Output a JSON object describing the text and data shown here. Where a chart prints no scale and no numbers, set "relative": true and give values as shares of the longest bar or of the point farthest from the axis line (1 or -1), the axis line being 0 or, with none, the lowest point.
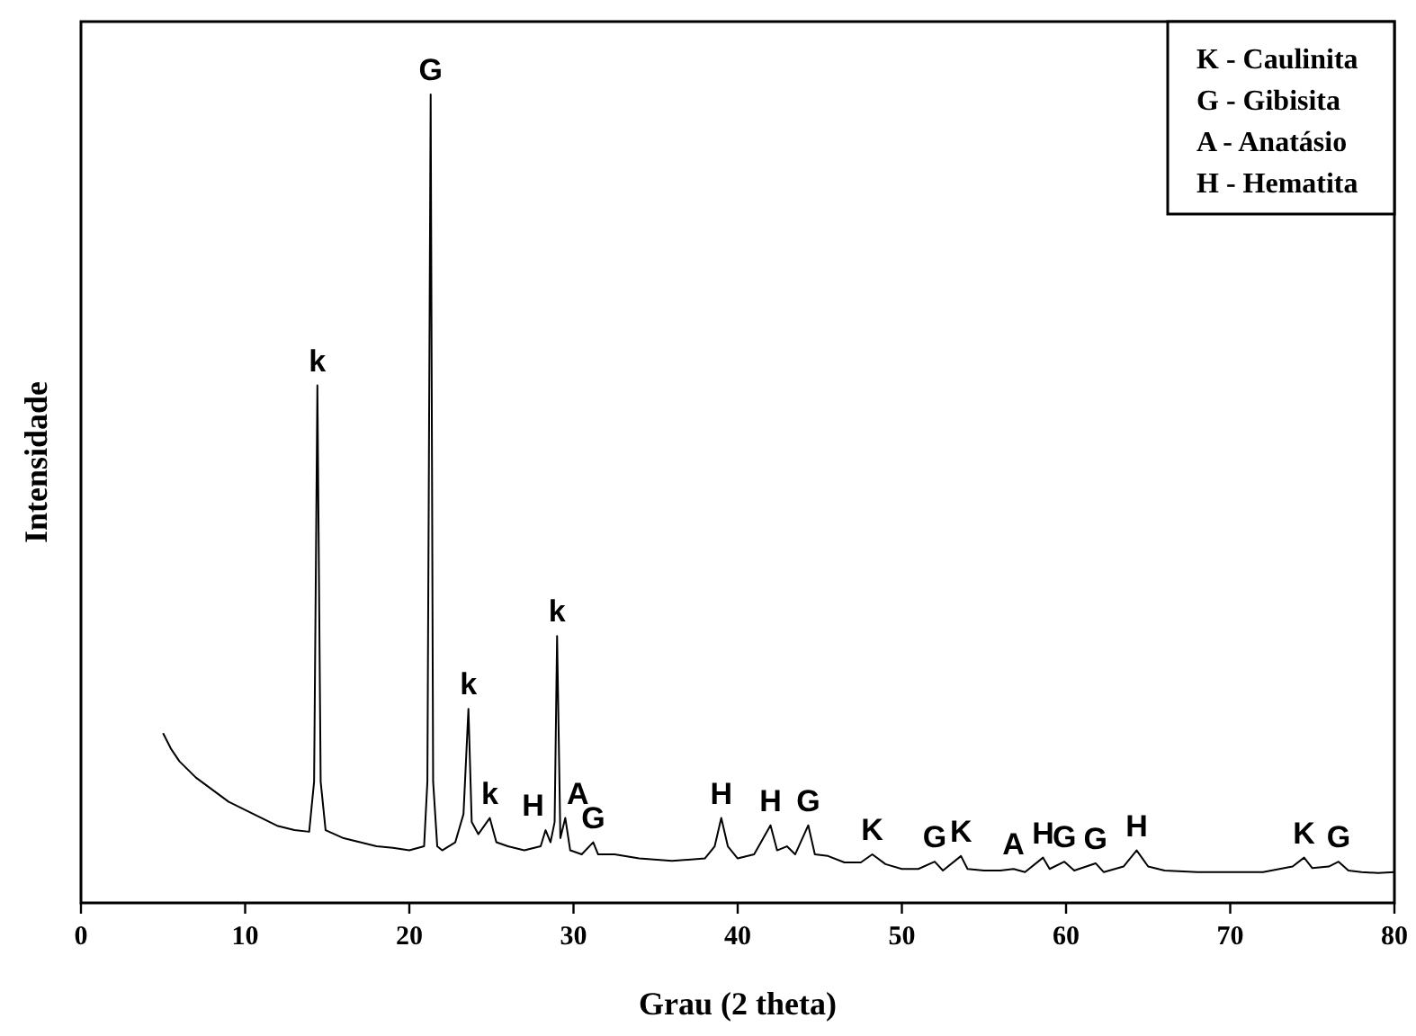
{
  "chart_data": {
    "type": "line",
    "relative": true,
    "xlabel": "Grau (2 theta)",
    "ylabel": "Intensidade",
    "xlim": [
      0,
      80
    ],
    "xticks": [
      0,
      10,
      20,
      30,
      40,
      50,
      60,
      70,
      80
    ],
    "grid": false,
    "marker": "none",
    "line_style": "solid",
    "series": [
      {
        "color": "#000000",
        "x": [
          5,
          5.5,
          6,
          7,
          8,
          9,
          10,
          11,
          12,
          13,
          13.9,
          14.2,
          14.4,
          14.6,
          14.9,
          16,
          17,
          18,
          19,
          20,
          20.9,
          21.1,
          21.3,
          21.45,
          21.7,
          22,
          22.8,
          23.3,
          23.6,
          23.8,
          24.2,
          24.9,
          25.3,
          26,
          27,
          28,
          28.3,
          28.6,
          28.85,
          29,
          29.2,
          29.5,
          29.8,
          30.5,
          31.2,
          31.5,
          32.5,
          34,
          36,
          38,
          38.6,
          39,
          39.4,
          40,
          41,
          42,
          42.4,
          43,
          43.5,
          44.3,
          44.7,
          45.5,
          46.5,
          47.5,
          48.2,
          49,
          50,
          51,
          52,
          52.5,
          53.6,
          54,
          55,
          56,
          56.8,
          57.5,
          58.6,
          59,
          59.9,
          60.5,
          61.8,
          62.3,
          63.5,
          64.3,
          65,
          66,
          68,
          70,
          72,
          73.8,
          74.5,
          75,
          76,
          76.6,
          77.2,
          78,
          79,
          80
        ],
        "values": [
          0.21,
          0.19,
          0.175,
          0.155,
          0.14,
          0.125,
          0.115,
          0.105,
          0.095,
          0.09,
          0.088,
          0.15,
          0.64,
          0.15,
          0.09,
          0.08,
          0.075,
          0.07,
          0.068,
          0.065,
          0.07,
          0.15,
          1,
          0.15,
          0.07,
          0.065,
          0.075,
          0.11,
          0.24,
          0.1,
          0.085,
          0.105,
          0.075,
          0.07,
          0.065,
          0.07,
          0.09,
          0.075,
          0.1,
          0.33,
          0.08,
          0.105,
          0.065,
          0.06,
          0.075,
          0.06,
          0.06,
          0.055,
          0.052,
          0.055,
          0.07,
          0.105,
          0.07,
          0.055,
          0.06,
          0.096,
          0.065,
          0.07,
          0.06,
          0.096,
          0.06,
          0.058,
          0.05,
          0.05,
          0.06,
          0.048,
          0.042,
          0.042,
          0.051,
          0.04,
          0.058,
          0.042,
          0.04,
          0.04,
          0.042,
          0.038,
          0.056,
          0.042,
          0.051,
          0.04,
          0.049,
          0.038,
          0.045,
          0.065,
          0.045,
          0.04,
          0.038,
          0.038,
          0.038,
          0.045,
          0.056,
          0.043,
          0.045,
          0.051,
          0.04,
          0.038,
          0.037,
          0.038
        ]
      }
    ],
    "annotations": [
      "K - Caulinita",
      "G - Gibisita",
      "A - Anatásio",
      "H - Hematita",
      {
        "text": "k",
        "x": 14.4,
        "y": 0.64
      },
      {
        "text": "G",
        "x": 21.3,
        "y": 1
      },
      {
        "text": "k",
        "x": 23.6,
        "y": 0.24
      },
      {
        "text": "k",
        "x": 24.9,
        "y": 0.105
      },
      {
        "text": "H",
        "x": 28.3,
        "y": 0.09
      },
      {
        "text": "k",
        "x": 29,
        "y": 0.33
      },
      {
        "text": "A",
        "x": 29.5,
        "y": 0.105
      },
      {
        "text": "G",
        "x": 31.2,
        "y": 0.075
      },
      {
        "text": "H",
        "x": 39,
        "y": 0.105
      },
      {
        "text": "H",
        "x": 42,
        "y": 0.096
      },
      {
        "text": "G",
        "x": 44.3,
        "y": 0.096
      },
      {
        "text": "K",
        "x": 48.2,
        "y": 0.06
      },
      {
        "text": "G",
        "x": 52,
        "y": 0.051
      },
      {
        "text": "K",
        "x": 53.6,
        "y": 0.058
      },
      {
        "text": "A",
        "x": 56.8,
        "y": 0.042
      },
      {
        "text": "H",
        "x": 58.6,
        "y": 0.056
      },
      {
        "text": "G",
        "x": 59.9,
        "y": 0.051
      },
      {
        "text": "G",
        "x": 61.8,
        "y": 0.049
      },
      {
        "text": "H",
        "x": 64.3,
        "y": 0.065
      },
      {
        "text": "K",
        "x": 74.5,
        "y": 0.056
      },
      {
        "text": "G",
        "x": 76.6,
        "y": 0.051
      }
    ]
  }
}
